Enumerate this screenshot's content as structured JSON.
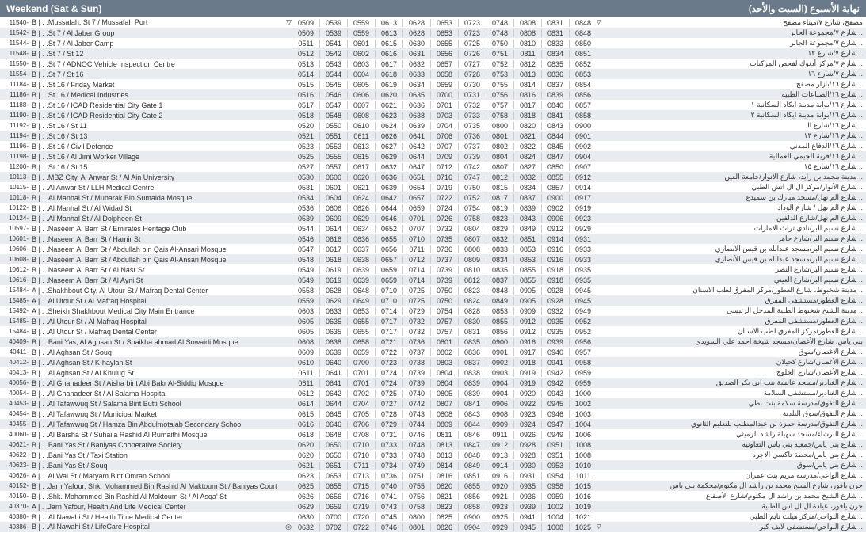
{
  "header": {
    "left": "Weekend (Sat & Sun)",
    "right": "نهاية الأسبوع (السبت والأحد)"
  },
  "rows": [
    {
      "id": "11540-",
      "code": "B | . .",
      "en": "Mussafah, St 7 / Mussafah Port",
      "ar": "مصفح، شارع ٧/ميناء مصفح",
      "times": [
        "0509",
        "0539",
        "0559",
        "0613",
        "0628",
        "0653",
        "0723",
        "0748",
        "0808",
        "0831",
        "0848"
      ],
      "triL": true,
      "triR": true
    },
    {
      "id": "11542-",
      "code": "B | . .",
      "en": "St 7 / Al Jaber Group",
      "ar": ".. شارع ٧/مجموعة الجابر",
      "times": [
        "0509",
        "0539",
        "0559",
        "0613",
        "0628",
        "0653",
        "0723",
        "0748",
        "0808",
        "0831",
        "0848"
      ]
    },
    {
      "id": "11544-",
      "code": "B | . .",
      "en": "St 7 / Al Jaber Camp",
      "ar": ".. شارع ٧/مجموعة الجابر",
      "times": [
        "0511",
        "0541",
        "0601",
        "0615",
        "0630",
        "0655",
        "0725",
        "0750",
        "0810",
        "0833",
        "0850"
      ]
    },
    {
      "id": "11548-",
      "code": "B | . .",
      "en": "St 7 / St 12",
      "ar": ".. شارع ٧/شارع ١٢",
      "times": [
        "0512",
        "0542",
        "0602",
        "0616",
        "0631",
        "0656",
        "0726",
        "0751",
        "0811",
        "0834",
        "0851"
      ]
    },
    {
      "id": "11550-",
      "code": "B | . .",
      "en": "St 7 / ADNOC Vehicle Inspection Centre",
      "ar": ".. شارع ٧/مركز أدنوك لفحص المركبات",
      "times": [
        "0513",
        "0543",
        "0603",
        "0617",
        "0632",
        "0657",
        "0727",
        "0752",
        "0812",
        "0835",
        "0852"
      ]
    },
    {
      "id": "11554-",
      "code": "B | . .",
      "en": "St 7 / St 16",
      "ar": ".. شارع ٧/شارع ١٦",
      "times": [
        "0514",
        "0544",
        "0604",
        "0618",
        "0633",
        "0658",
        "0728",
        "0753",
        "0813",
        "0836",
        "0853"
      ]
    },
    {
      "id": "11184-",
      "code": "B | . .",
      "en": "St 16 / Friday Market",
      "ar": ".. شارع ١٦/بازار مصفح",
      "times": [
        "0515",
        "0545",
        "0605",
        "0619",
        "0634",
        "0659",
        "0730",
        "0755",
        "0814",
        "0837",
        "0854"
      ]
    },
    {
      "id": "11186-",
      "code": "B | . .",
      "en": "St 16 / Medical Industries",
      "ar": ".. شارع ١٦/الصناعات الطبية",
      "times": [
        "0516",
        "0546",
        "0606",
        "0620",
        "0635",
        "0700",
        "0731",
        "0756",
        "0816",
        "0839",
        "0856"
      ]
    },
    {
      "id": "11188-",
      "code": "B | . .",
      "en": "St 16 / ICAD Residential City Gate 1",
      "ar": ".. شارع ١٦/بوابة مدينة ايكاد السكانية ١",
      "times": [
        "0517",
        "0547",
        "0607",
        "0621",
        "0636",
        "0701",
        "0732",
        "0757",
        "0817",
        "0840",
        "0857"
      ]
    },
    {
      "id": "11190-",
      "code": "B | . .",
      "en": "St 16 / ICAD Residential City Gate 2",
      "ar": ".. شارع ١٦/بوابة مدينة ايكاد السكانية ٢",
      "times": [
        "0518",
        "0548",
        "0608",
        "0623",
        "0638",
        "0703",
        "0733",
        "0758",
        "0818",
        "0841",
        "0858"
      ]
    },
    {
      "id": "11192-",
      "code": "B | . .",
      "en": "St 16 / St 11",
      "ar": ".. شارع ١٦/شارع II",
      "times": [
        "0520",
        "0550",
        "0610",
        "0624",
        "0639",
        "0704",
        "0735",
        "0800",
        "0820",
        "0843",
        "0900"
      ]
    },
    {
      "id": "11194-",
      "code": "B | . .",
      "en": "St 16 / St 13",
      "ar": ".. شارع ١٦/شارع ١٣",
      "times": [
        "0521",
        "0551",
        "0611",
        "0626",
        "0641",
        "0706",
        "0736",
        "0801",
        "0821",
        "0844",
        "0901"
      ]
    },
    {
      "id": "11196-",
      "code": "B | . .",
      "en": "St 16 / Civil Defence",
      "ar": ".. شارع ١٦/الدفاع المدني",
      "times": [
        "0523",
        "0553",
        "0613",
        "0627",
        "0642",
        "0707",
        "0737",
        "0802",
        "0822",
        "0845",
        "0902"
      ]
    },
    {
      "id": "11198-",
      "code": "B | . .",
      "en": "St 16 / Al Jimi Worker Village",
      "ar": ".. شارع ١٦/قرية الجيمي العمالية",
      "times": [
        "0525",
        "0555",
        "0615",
        "0629",
        "0644",
        "0709",
        "0739",
        "0804",
        "0824",
        "0847",
        "0904"
      ]
    },
    {
      "id": "11200-",
      "code": "B | . .",
      "en": "St 16 / St 15",
      "ar": ".. شارع ١٦/شارع ١٥",
      "times": [
        "0527",
        "0557",
        "0617",
        "0632",
        "0647",
        "0712",
        "0742",
        "0807",
        "0827",
        "0850",
        "0907"
      ]
    },
    {
      "id": "10113-",
      "code": "B | . .",
      "en": "MBZ City, Al Anwar St / Al Ain University",
      "ar": ".. مدينة محمد بن زايد، شارع الأنوار/جامعة العين",
      "times": [
        "0530",
        "0600",
        "0620",
        "0636",
        "0651",
        "0716",
        "0747",
        "0812",
        "0832",
        "0855",
        "0912"
      ]
    },
    {
      "id": "10115-",
      "code": "B | . .",
      "en": "Al Anwar St / LLH Medical Centre",
      "ar": ".. شارع الأنوار/مركز ال ال اتش الطبي",
      "times": [
        "0531",
        "0601",
        "0621",
        "0639",
        "0654",
        "0719",
        "0750",
        "0815",
        "0834",
        "0857",
        "0914"
      ]
    },
    {
      "id": "10118-",
      "code": "B | . .",
      "en": "Al Manhal St / Mubarak Bin Sumaida Mosque",
      "ar": ".. شارع الم نهل/مسجد مبارك بن سميدع",
      "times": [
        "0534",
        "0604",
        "0624",
        "0642",
        "0657",
        "0722",
        "0752",
        "0817",
        "0837",
        "0900",
        "0917"
      ]
    },
    {
      "id": "10122-",
      "code": "B | . .",
      "en": "Al Manhal St / Al Widad St",
      "ar": ".. شارع الم نهل / شارع الوداد",
      "times": [
        "0536",
        "0606",
        "0626",
        "0644",
        "0659",
        "0724",
        "0754",
        "0819",
        "0839",
        "0902",
        "0919"
      ]
    },
    {
      "id": "10124-",
      "code": "B | . .",
      "en": "Al Manhal St / Al Dolpheen St",
      "ar": ".. شارع الم نهل/شارع الدلفين",
      "times": [
        "0539",
        "0609",
        "0629",
        "0646",
        "0701",
        "0726",
        "0758",
        "0823",
        "0843",
        "0906",
        "0923"
      ]
    },
    {
      "id": "10597-",
      "code": "B | . .",
      "en": "Naseem Al Barr St / Emirates Heritage Club",
      "ar": ".. شارع نسيم البر/نادي تراث الامارات",
      "times": [
        "0544",
        "0614",
        "0634",
        "0652",
        "0707",
        "0732",
        "0804",
        "0829",
        "0849",
        "0912",
        "0929"
      ]
    },
    {
      "id": "10601-",
      "code": "B | . .",
      "en": "Naseem Al Barr St / Hamir St",
      "ar": ".. شارع نسيم البر/شارع حامر",
      "times": [
        "0546",
        "0616",
        "0636",
        "0655",
        "0710",
        "0735",
        "0807",
        "0832",
        "0851",
        "0914",
        "0931"
      ]
    },
    {
      "id": "10606-",
      "code": "B | . .",
      "en": "Naseem Al Barr St / Abdullah bin Qais Al-Ansari Mosque",
      "ar": ".. شارع نسيم البر/مسجد عبدالله بن قيس الأنصاري",
      "times": [
        "0547",
        "0617",
        "0637",
        "0656",
        "0711",
        "0736",
        "0808",
        "0833",
        "0853",
        "0916",
        "0933"
      ]
    },
    {
      "id": "10608-",
      "code": "B | . .",
      "en": "Naseem Al Barr St / Abdullah bin Qais Al-Ansari Mosque",
      "ar": ".. شارع نسيم البر/مسجد عبدالله بن قيس الأنصاري",
      "times": [
        "0548",
        "0618",
        "0638",
        "0657",
        "0712",
        "0737",
        "0809",
        "0834",
        "0853",
        "0916",
        "0933"
      ]
    },
    {
      "id": "10612-",
      "code": "B | . .",
      "en": "Naseem Al Barr St / Al Nasr St",
      "ar": ".. شارع نسيم البر/شارع النصر",
      "times": [
        "0549",
        "0619",
        "0639",
        "0659",
        "0714",
        "0739",
        "0810",
        "0835",
        "0855",
        "0918",
        "0935"
      ]
    },
    {
      "id": "10616-",
      "code": "B | . .",
      "en": "Naseem Al Barr St / Al Ayni St",
      "ar": ".. شارع نسيم البر/شارع العيني",
      "times": [
        "0549",
        "0619",
        "0639",
        "0659",
        "0714",
        "0739",
        "0812",
        "0837",
        "0855",
        "0918",
        "0935"
      ]
    },
    {
      "id": "15484-",
      "code": "A | . .",
      "en": "Shakhbout City, Al Utour St / Mafraq Dental Center",
      "ar": ".. مدينة شخبوط، شارع العطور/مركز المفرق لطب الاسنان",
      "times": [
        "0558",
        "0628",
        "0648",
        "0710",
        "0725",
        "0750",
        "0823",
        "0848",
        "0905",
        "0928",
        "0945"
      ]
    },
    {
      "id": "15485-",
      "code": "A | . .",
      "en": "Al Utour St / Al Mafraq Hospital",
      "ar": ".. شارع العطور/مستشفى المفرق",
      "times": [
        "0559",
        "0629",
        "0649",
        "0710",
        "0725",
        "0750",
        "0824",
        "0849",
        "0905",
        "0928",
        "0945"
      ]
    },
    {
      "id": "15492-",
      "code": "A | . .",
      "en": "Sheikh Shakhbout Medical City Main Entrance",
      "ar": ".. مدينة الشيخ شخبوط الطبية المدخل الرئيسي",
      "times": [
        "0603",
        "0633",
        "0653",
        "0714",
        "0729",
        "0754",
        "0828",
        "0853",
        "0909",
        "0932",
        "0949"
      ]
    },
    {
      "id": "15485-",
      "code": "B | . .",
      "en": "Al Utour St / Al Mafraq Hospital",
      "ar": ".. شارع العطور/مستشفى المفرق",
      "times": [
        "0605",
        "0635",
        "0655",
        "0717",
        "0732",
        "0757",
        "0830",
        "0855",
        "0912",
        "0935",
        "0952"
      ]
    },
    {
      "id": "15484-",
      "code": "B | . .",
      "en": "Al Utour St / Mafraq Dental Center",
      "ar": ".. شارع العطور/مركز المفرق لطب الاسنان",
      "times": [
        "0605",
        "0635",
        "0655",
        "0717",
        "0732",
        "0757",
        "0831",
        "0856",
        "0912",
        "0935",
        "0952"
      ]
    },
    {
      "id": "40409-",
      "code": "B | . .",
      "en": "Bani Yas, Al Aghsan St / Shaikha ahmad Al Sowaidi Mosque",
      "ar": "بني ياس، شارع الأغصان/مسجد شيخة احمد علي السويدي",
      "times": [
        "0608",
        "0638",
        "0658",
        "0721",
        "0736",
        "0801",
        "0835",
        "0900",
        "0916",
        "0939",
        "0956"
      ]
    },
    {
      "id": "40411-",
      "code": "B | . .",
      "en": "Al Aghsan St / Souq",
      "ar": ".. شارع الأغصان/سوق",
      "times": [
        "0609",
        "0639",
        "0659",
        "0722",
        "0737",
        "0802",
        "0836",
        "0901",
        "0917",
        "0940",
        "0957"
      ]
    },
    {
      "id": "40412-",
      "code": "B | . .",
      "en": "Al Aghsan St / K-haylan St",
      "ar": ".. شارع الأغصان/شارع كحيلان",
      "times": [
        "0610",
        "0640",
        "0700",
        "0723",
        "0738",
        "0803",
        "0837",
        "0902",
        "0918",
        "0941",
        "0958"
      ]
    },
    {
      "id": "40413-",
      "code": "B | . .",
      "en": "Al Aghsan St / Al Khulug St",
      "ar": ".. شارع الأغصان/شارع الخلوج",
      "times": [
        "0611",
        "0641",
        "0701",
        "0724",
        "0739",
        "0804",
        "0838",
        "0903",
        "0919",
        "0942",
        "0959"
      ]
    },
    {
      "id": "40056-",
      "code": "B | . .",
      "en": "Al Ghanadeer St / Aisha bint Abi Bakr Al-Siddiq Mosque",
      "ar": ".. شارع الغنادير/مسجد عائشة بنت ابي بكر الصديق",
      "times": [
        "0611",
        "0641",
        "0701",
        "0724",
        "0739",
        "0804",
        "0839",
        "0904",
        "0919",
        "0942",
        "0959"
      ]
    },
    {
      "id": "40054-",
      "code": "B | . .",
      "en": "Al Ghanadeer St / Al Salama Hospital",
      "ar": ".. شارع الغنادير/مستشفى السلامة",
      "times": [
        "0612",
        "0642",
        "0702",
        "0725",
        "0740",
        "0805",
        "0839",
        "0904",
        "0920",
        "0943",
        "1000"
      ]
    },
    {
      "id": "40453-",
      "code": "B | . .",
      "en": "Al Tafawwuq St / Salama Bint Butti School",
      "ar": ".. شارع التفوق/مدرسة سلامة بنت بطي",
      "times": [
        "0614",
        "0644",
        "0704",
        "0727",
        "0742",
        "0807",
        "0841",
        "0906",
        "0922",
        "0945",
        "1002"
      ]
    },
    {
      "id": "40454-",
      "code": "B | . .",
      "en": "Al Tafawwuq St / Municipal Market",
      "ar": ".. شارع التفوق/سوق البلدية",
      "times": [
        "0615",
        "0645",
        "0705",
        "0728",
        "0743",
        "0808",
        "0843",
        "0908",
        "0923",
        "0946",
        "1003"
      ]
    },
    {
      "id": "40455-",
      "code": "B | . .",
      "en": "Al Tafawwuq St / Hamza Bin Abdulmotalab Secondary Schoo",
      "ar": ".. شارع التفوق/مدرسة حمزة بن عبدالمطلب للتعليم الثانوي",
      "times": [
        "0616",
        "0646",
        "0706",
        "0729",
        "0744",
        "0809",
        "0844",
        "0909",
        "0924",
        "0947",
        "1004"
      ]
    },
    {
      "id": "40060-",
      "code": "B | . .",
      "en": "Al Barsha St / Suhaila Rashid Al Rumaithi Mosque",
      "ar": ".. شارع البرشاء/مسجد سهيلة راشد الرميثي",
      "times": [
        "0618",
        "0648",
        "0708",
        "0731",
        "0746",
        "0811",
        "0846",
        "0911",
        "0926",
        "0949",
        "1006"
      ]
    },
    {
      "id": "40621-",
      "code": "B | . .",
      "en": "Bani Yas St / Baniyas Cooperative Society",
      "ar": ".. شارع بني ياس/جمعية بني ياس التعاونية",
      "times": [
        "0620",
        "0650",
        "0710",
        "0733",
        "0748",
        "0813",
        "0847",
        "0912",
        "0928",
        "0951",
        "1008"
      ]
    },
    {
      "id": "40622-",
      "code": "B | . .",
      "en": "Bani Yas St / Taxi Station",
      "ar": ".. شارع بني ياس/محطة تاكسي الاجره",
      "times": [
        "0620",
        "0650",
        "0710",
        "0733",
        "0748",
        "0813",
        "0848",
        "0913",
        "0928",
        "0951",
        "1008"
      ]
    },
    {
      "id": "40623-",
      "code": "B | . .",
      "en": "Bani Yas St / Souq",
      "ar": ".. شارع بني ياس/سوق",
      "times": [
        "0621",
        "0651",
        "0711",
        "0734",
        "0749",
        "0814",
        "0849",
        "0914",
        "0930",
        "0953",
        "1010"
      ]
    },
    {
      "id": "40626-",
      "code": "A | . .",
      "en": "Al Wai St / Maryam Bint Omran School",
      "ar": ".. شارع الواعي/مدرسة مريم بنت عمران",
      "times": [
        "0623",
        "0653",
        "0713",
        "0736",
        "0751",
        "0816",
        "0851",
        "0916",
        "0931",
        "0954",
        "1011"
      ]
    },
    {
      "id": "40152-",
      "code": "B | . .",
      "en": "Jarn Yafour, Shk. Mohammed Bin Rashid Al Maktoum St / Baniyas Court",
      "ar": "جرن يافور، شارع الشيخ محمد بن راشد ال مكتوم/محكمة بني ياس",
      "times": [
        "0625",
        "0655",
        "0715",
        "0740",
        "0755",
        "0820",
        "0855",
        "0920",
        "0935",
        "0958",
        "1015"
      ]
    },
    {
      "id": "40150-",
      "code": "B | . .",
      "en": "Shk. Mohammed Bin Rashid Al Maktoum St / Al Asqa' St",
      "ar": ".. شارع الشيخ محمد بن راشد ال مكتوم/شارع الأصقاع",
      "times": [
        "0626",
        "0656",
        "0716",
        "0741",
        "0756",
        "0821",
        "0856",
        "0921",
        "0936",
        "0959",
        "1016"
      ]
    },
    {
      "id": "40370-",
      "code": "A | . .",
      "en": "Jarn Yafour, Health And Life Medical Center",
      "ar": "جرن يافور، عيادة ال ال اس الطبية",
      "times": [
        "0629",
        "0659",
        "0719",
        "0743",
        "0758",
        "0823",
        "0858",
        "0923",
        "0939",
        "1002",
        "1019"
      ]
    },
    {
      "id": "40380-",
      "code": "B | . .",
      "en": "Al Nawahi St / Health Time Medical Center",
      "ar": ".. شارع النواحي/مركز هيلث تايم الطبي",
      "times": [
        "0630",
        "0700",
        "0720",
        "0745",
        "0800",
        "0825",
        "0900",
        "0925",
        "0941",
        "1004",
        "1021"
      ]
    },
    {
      "id": "40386-",
      "code": "B | . .",
      "en": "Al Nawahi St / LifeCare Hospital",
      "ar": ".. شارع النواحي/مستشفى لايف كير",
      "times": [
        "0632",
        "0702",
        "0722",
        "0746",
        "0801",
        "0826",
        "0904",
        "0929",
        "0945",
        "1008",
        "1025"
      ],
      "circL": true,
      "triR": true
    }
  ]
}
